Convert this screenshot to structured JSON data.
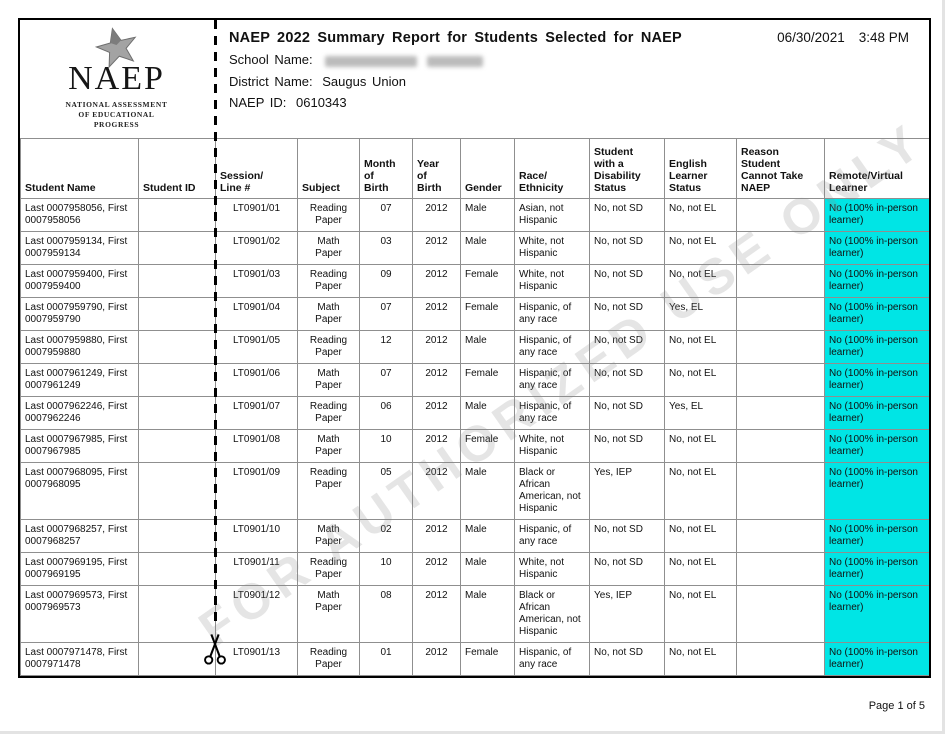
{
  "page": {
    "date": "06/30/2021",
    "time": "3:48 PM",
    "page_number": "Page 1 of 5",
    "watermark": "FOR AUTHORIZED USE ONLY"
  },
  "logo": {
    "acronym": "NAEP",
    "tagline_lines": [
      "NATIONAL ASSESSMENT",
      "OF EDUCATIONAL",
      "PROGRESS"
    ]
  },
  "header": {
    "title": "NAEP 2022 Summary Report for Students Selected for NAEP",
    "school_name_label": "School Name:",
    "district_name_label": "District Name:",
    "district_name_value": "Saugus Union",
    "naep_id_label": "NAEP ID:",
    "naep_id_value": "0610343"
  },
  "colors": {
    "highlight_cyan": "#00e5e5"
  },
  "table": {
    "column_keys": [
      "student-name",
      "student-id",
      "session-line",
      "subject",
      "month-of-birth",
      "year-of-birth",
      "gender",
      "race-ethnicity",
      "disability-status",
      "el-status",
      "reason-cannot-take",
      "remote-virtual"
    ],
    "columns": [
      "Student Name",
      "Student ID",
      "Session/\nLine #",
      "Subject",
      "Month\nof\nBirth",
      "Year\nof\nBirth",
      "Gender",
      "Race/\nEthnicity",
      "Student\nwith a\nDisability\nStatus",
      "English\nLearner\nStatus",
      "Reason\nStudent\nCannot Take\nNAEP",
      "Remote/Virtual\nLearner"
    ],
    "rows": [
      [
        "Last 0007958056, First 0007958056",
        "",
        "LT0901/01",
        "Reading\nPaper",
        "07",
        "2012",
        "Male",
        "Asian, not Hispanic",
        "No, not SD",
        "No, not EL",
        "",
        "No (100% in-person learner)"
      ],
      [
        "Last 0007959134, First 0007959134",
        "",
        "LT0901/02",
        "Math\nPaper",
        "03",
        "2012",
        "Male",
        "White, not Hispanic",
        "No, not SD",
        "No, not EL",
        "",
        "No (100% in-person learner)"
      ],
      [
        "Last 0007959400, First 0007959400",
        "",
        "LT0901/03",
        "Reading\nPaper",
        "09",
        "2012",
        "Female",
        "White, not Hispanic",
        "No, not SD",
        "No, not EL",
        "",
        "No (100% in-person learner)"
      ],
      [
        "Last 0007959790, First 0007959790",
        "",
        "LT0901/04",
        "Math\nPaper",
        "07",
        "2012",
        "Female",
        "Hispanic, of any race",
        "No, not SD",
        "Yes, EL",
        "",
        "No (100% in-person learner)"
      ],
      [
        "Last 0007959880, First 0007959880",
        "",
        "LT0901/05",
        "Reading\nPaper",
        "12",
        "2012",
        "Male",
        "Hispanic, of any race",
        "No, not SD",
        "No, not EL",
        "",
        "No (100% in-person learner)"
      ],
      [
        "Last 0007961249, First 0007961249",
        "",
        "LT0901/06",
        "Math\nPaper",
        "07",
        "2012",
        "Female",
        "Hispanic, of any race",
        "No, not SD",
        "No, not EL",
        "",
        "No (100% in-person learner)"
      ],
      [
        "Last 0007962246, First 0007962246",
        "",
        "LT0901/07",
        "Reading\nPaper",
        "06",
        "2012",
        "Male",
        "Hispanic, of any race",
        "No, not SD",
        "Yes, EL",
        "",
        "No (100% in-person learner)"
      ],
      [
        "Last 0007967985, First 0007967985",
        "",
        "LT0901/08",
        "Math\nPaper",
        "10",
        "2012",
        "Female",
        "White, not Hispanic",
        "No, not SD",
        "No, not EL",
        "",
        "No (100% in-person learner)"
      ],
      [
        "Last 0007968095, First 0007968095",
        "",
        "LT0901/09",
        "Reading\nPaper",
        "05",
        "2012",
        "Male",
        "Black or African American, not Hispanic",
        "Yes, IEP",
        "No, not EL",
        "",
        "No (100% in-person learner)"
      ],
      [
        "Last 0007968257, First 0007968257",
        "",
        "LT0901/10",
        "Math\nPaper",
        "02",
        "2012",
        "Male",
        "Hispanic, of any race",
        "No, not SD",
        "No, not EL",
        "",
        "No (100% in-person learner)"
      ],
      [
        "Last 0007969195, First 0007969195",
        "",
        "LT0901/11",
        "Reading\nPaper",
        "10",
        "2012",
        "Male",
        "White, not Hispanic",
        "No, not SD",
        "No, not EL",
        "",
        "No (100% in-person learner)"
      ],
      [
        "Last 0007969573, First 0007969573",
        "",
        "LT0901/12",
        "Math\nPaper",
        "08",
        "2012",
        "Male",
        "Black or African American, not Hispanic",
        "Yes, IEP",
        "No, not EL",
        "",
        "No (100% in-person learner)"
      ],
      [
        "Last 0007971478, First 0007971478",
        "",
        "LT0901/13",
        "Reading\nPaper",
        "01",
        "2012",
        "Female",
        "Hispanic, of any race",
        "No, not SD",
        "No, not EL",
        "",
        "No (100% in-person learner)"
      ]
    ]
  }
}
